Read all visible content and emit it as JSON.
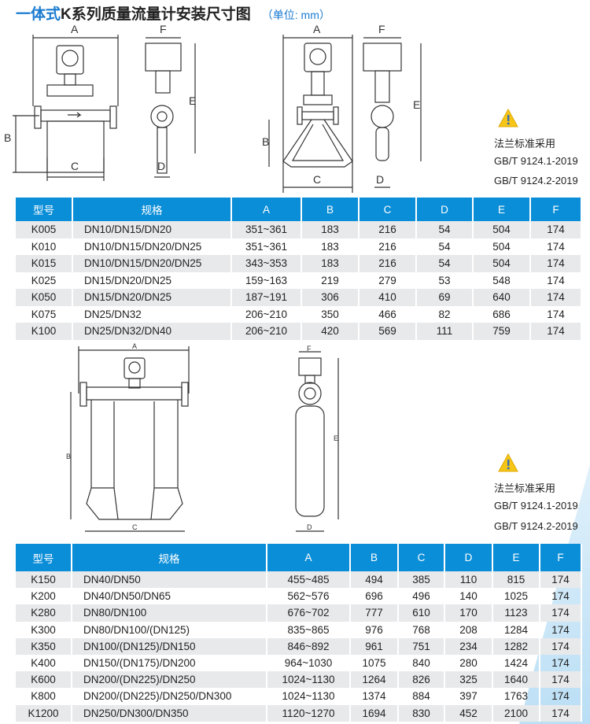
{
  "title": {
    "prefix": "一体式",
    "main": "K系列质量流量计安装尺寸图",
    "unit": "（单位: mm）"
  },
  "dimension_labels": {
    "A": "A",
    "B": "B",
    "C": "C",
    "D": "D",
    "E": "E",
    "F": "F"
  },
  "notes_1": {
    "icon": "warning-icon",
    "line1": "法兰标准采用",
    "line2": "GB/T 9124.1-2019",
    "line3": "GB/T 9124.2-2019"
  },
  "notes_2": {
    "icon": "warning-icon",
    "line1": "法兰标准采用",
    "line2": "GB/T 9124.1-2019",
    "line3": "GB/T 9124.2-2019"
  },
  "colors": {
    "header": "#0b8ed8",
    "stripe": "#e8e9eb",
    "title_accent": "#1a7bd0"
  },
  "table1": {
    "headers": [
      "型号",
      "规格",
      "A",
      "B",
      "C",
      "D",
      "E",
      "F"
    ],
    "rows": [
      [
        "K005",
        "DN10/DN15/DN20",
        "351~361",
        "183",
        "216",
        "54",
        "504",
        "174"
      ],
      [
        "K010",
        "DN10/DN15/DN20/DN25",
        "351~361",
        "183",
        "216",
        "54",
        "504",
        "174"
      ],
      [
        "K015",
        "DN10/DN15/DN20/DN25",
        "343~353",
        "183",
        "216",
        "54",
        "504",
        "174"
      ],
      [
        "K025",
        "DN15/DN20/DN25",
        "159~163",
        "219",
        "279",
        "53",
        "548",
        "174"
      ],
      [
        "K050",
        "DN15/DN20/DN25",
        "187~191",
        "306",
        "410",
        "69",
        "640",
        "174"
      ],
      [
        "K075",
        "DN25/DN32",
        "206~210",
        "350",
        "466",
        "82",
        "686",
        "174"
      ],
      [
        "K100",
        "DN25/DN32/DN40",
        "206~210",
        "420",
        "569",
        "111",
        "759",
        "174"
      ]
    ]
  },
  "table2": {
    "headers": [
      "型号",
      "规格",
      "A",
      "B",
      "C",
      "D",
      "E",
      "F"
    ],
    "rows": [
      [
        "K150",
        "DN40/DN50",
        "455~485",
        "494",
        "385",
        "110",
        "815",
        "174"
      ],
      [
        "K200",
        "DN40/DN50/DN65",
        "562~576",
        "696",
        "496",
        "140",
        "1025",
        "174"
      ],
      [
        "K280",
        "DN80/DN100",
        "676~702",
        "777",
        "610",
        "170",
        "1123",
        "174"
      ],
      [
        "K300",
        "DN80/DN100/(DN125)",
        "835~865",
        "976",
        "768",
        "208",
        "1284",
        "174"
      ],
      [
        "K350",
        "DN100/(DN125)/DN150",
        "846~892",
        "961",
        "751",
        "234",
        "1282",
        "174"
      ],
      [
        "K400",
        "DN150/(DN175)/DN200",
        "964~1030",
        "1075",
        "840",
        "280",
        "1424",
        "174"
      ],
      [
        "K600",
        "DN200/(DN225)/DN250",
        "1024~1130",
        "1264",
        "826",
        "325",
        "1640",
        "174"
      ],
      [
        "K800",
        "DN200/(DN225)/DN250/DN300",
        "1024~1130",
        "1374",
        "884",
        "397",
        "1763",
        "174"
      ],
      [
        "K1200",
        "DN250/DN300/DN350",
        "1120~1270",
        "1694",
        "830",
        "452",
        "2100",
        "174"
      ]
    ]
  }
}
